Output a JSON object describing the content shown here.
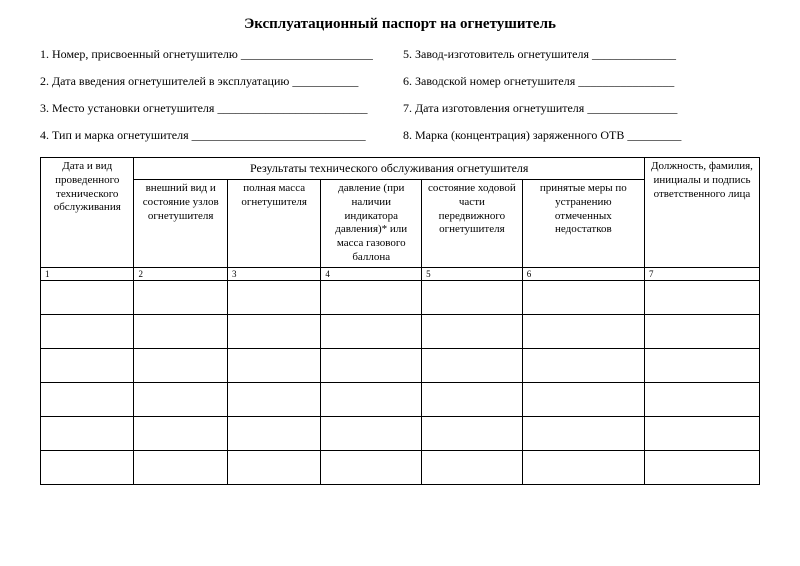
{
  "title": "Эксплуатационный паспорт на огнетушитель",
  "fields": {
    "f1": {
      "label": "1. Номер, присвоенный огнетушителю",
      "blank": " ______________________"
    },
    "f2": {
      "label": "2. Дата введения огнетушителей в эксплуатацию",
      "blank": " ___________"
    },
    "f3": {
      "label": "3. Место установки огнетушителя",
      "blank": " _________________________"
    },
    "f4": {
      "label": "4. Тип и марка огнетушителя",
      "blank": " _____________________________"
    },
    "f5": {
      "label": "5. Завод-изготовитель огнетушителя",
      "blank": " ______________"
    },
    "f6": {
      "label": "6. Заводской номер огнетушителя",
      "blank": " ________________"
    },
    "f7": {
      "label": "7. Дата изготовления огнетушителя",
      "blank": " _______________"
    },
    "f8": {
      "label": "8. Марка (концентрация) заряженного ОТВ",
      "blank": " _________"
    }
  },
  "table": {
    "header": {
      "col1": "Дата и вид проведенного технического обслуживания",
      "group": "Результаты технического обслуживания огнетушителя",
      "col2": "внешний вид и состояние узлов огнетушителя",
      "col3": "полная масса огнетушителя",
      "col4": "давление (при наличии индикатора давления)* или масса газового баллона",
      "col5": "состояние ходовой части передвижного огнетушителя",
      "col6": "принятые меры по устранению отмеченных недостатков",
      "col7": "Должность, фамилия, инициалы и подпись ответственного лица"
    },
    "colnums": [
      "1",
      "2",
      "3",
      "4",
      "5",
      "6",
      "7"
    ],
    "data_row_count": 6
  },
  "style": {
    "background_color": "#ffffff",
    "text_color": "#000000",
    "border_color": "#000000",
    "font_family": "Times New Roman",
    "title_fontsize": 15,
    "body_fontsize": 12,
    "header_fontsize": 11,
    "numrow_fontsize": 9
  }
}
